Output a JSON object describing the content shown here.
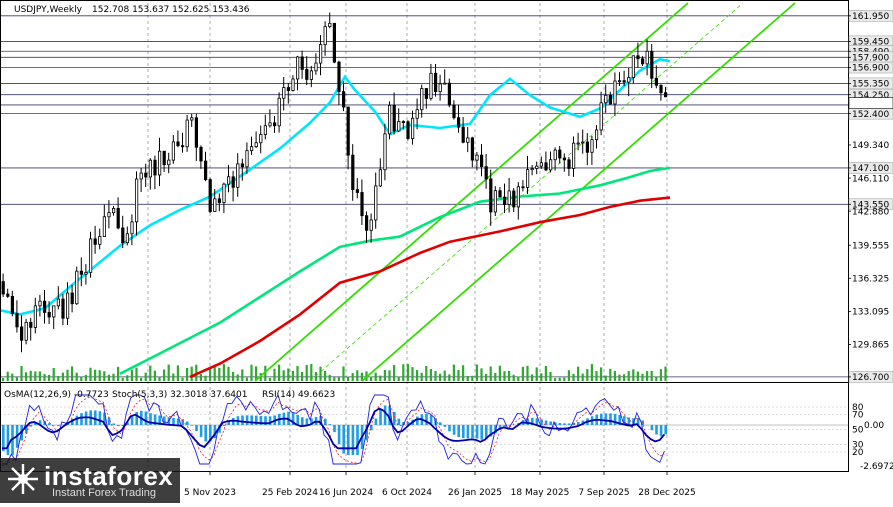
{
  "header": {
    "symbol": "USDJPY,Weekly",
    "ohlc": "152.708 153.637 152.625 153.436"
  },
  "indicator_header": {
    "osma": "OsMA(12,26,9) -0.7723",
    "stoch": "Stoch(5,3,3) 32.3018 37.6401",
    "rsi": "RSI(14) 49.6623"
  },
  "watermark": {
    "brand": "instaforex",
    "tagline": "Instant Forex Trading"
  },
  "colors": {
    "candle": "#000000",
    "ema_short": "#00e5ff",
    "ema_mid": "#00e67a",
    "ema_long": "#e00000",
    "channel": "#33dd00",
    "hline": "#3a3a6a",
    "osma_hist": "#1e9de6",
    "stoch_main": "#2222dd",
    "stoch_signal": "#ee2222",
    "rsi": "#0000aa"
  },
  "chart_data": [
    {
      "type": "candlestick",
      "title": "USDJPY,Weekly",
      "price_labels": [
        "161.950",
        "159.450",
        "158.490",
        "157.900",
        "156.900",
        "155.350",
        "154.250",
        "153.250",
        "152.400",
        "149.340",
        "147.100",
        "146.110",
        "143.550",
        "142.880",
        "139.555",
        "136.325",
        "133.095",
        "129.865",
        "126.700"
      ],
      "highlighted_levels": [
        "161.950",
        "159.450",
        "158.490",
        "157.900",
        "156.900",
        "155.350",
        "154.250",
        "153.250",
        "152.400",
        "147.100",
        "143.550",
        "126.700"
      ],
      "date_labels": [
        "5 Nov 2023",
        "25 Feb 2024",
        "16 Jun 2024",
        "6 Oct 2024",
        "26 Jan 2025",
        "18 May 2025",
        "7 Sep 2025",
        "28 Dec 2025"
      ],
      "ylim": [
        126.3,
        163.2
      ],
      "moving_averages": [
        {
          "color_key": "ema_short",
          "points": [
            [
              0,
              133.2
            ],
            [
              20,
              132.8
            ],
            [
              45,
              133.4
            ],
            [
              70,
              135.5
            ],
            [
              95,
              137.5
            ],
            [
              120,
              139.5
            ],
            [
              150,
              141.5
            ],
            [
              180,
              143.0
            ],
            [
              210,
              144.3
            ],
            [
              245,
              146.6
            ],
            [
              280,
              149.0
            ],
            [
              310,
              151.5
            ],
            [
              330,
              153.5
            ],
            [
              345,
              156.0
            ],
            [
              355,
              154.7
            ],
            [
              375,
              152.6
            ],
            [
              390,
              150.4
            ],
            [
              410,
              151.3
            ],
            [
              440,
              151.0
            ],
            [
              470,
              151.4
            ],
            [
              490,
              154.2
            ],
            [
              510,
              155.8
            ],
            [
              530,
              154.2
            ],
            [
              550,
              153.0
            ],
            [
              580,
              152.1
            ],
            [
              600,
              152.9
            ],
            [
              620,
              154.7
            ],
            [
              640,
              156.6
            ],
            [
              660,
              157.7
            ],
            [
              670,
              157.5
            ]
          ]
        },
        {
          "color_key": "ema_mid",
          "points": [
            [
              120,
              127.0
            ],
            [
              150,
              128.5
            ],
            [
              180,
              130.0
            ],
            [
              220,
              132.0
            ],
            [
              260,
              134.5
            ],
            [
              300,
              137.0
            ],
            [
              340,
              139.4
            ],
            [
              370,
              140.0
            ],
            [
              400,
              140.4
            ],
            [
              440,
              142.3
            ],
            [
              480,
              143.8
            ],
            [
              520,
              144.3
            ],
            [
              560,
              144.6
            ],
            [
              600,
              145.4
            ],
            [
              630,
              146.2
            ],
            [
              650,
              146.8
            ],
            [
              670,
              147.1
            ]
          ]
        },
        {
          "color_key": "ema_long",
          "points": [
            [
              190,
              126.7
            ],
            [
              220,
              128.0
            ],
            [
              260,
              130.2
            ],
            [
              300,
              132.8
            ],
            [
              340,
              135.9
            ],
            [
              380,
              137.0
            ],
            [
              420,
              138.8
            ],
            [
              450,
              139.9
            ],
            [
              500,
              140.9
            ],
            [
              540,
              141.8
            ],
            [
              580,
              142.5
            ],
            [
              610,
              143.3
            ],
            [
              640,
              143.9
            ],
            [
              670,
              144.2
            ]
          ]
        }
      ]
    },
    {
      "type": "bar",
      "title": "OsMA(12,26,9)",
      "scale_labels": [
        "0.00",
        "-2.69725"
      ],
      "current_value": -0.7723
    },
    {
      "type": "line",
      "title": "Stoch(5,3,3) / RSI(14)",
      "scale_labels": [
        "80",
        "70",
        "50",
        "30",
        "20"
      ],
      "series": [
        {
          "name": "Stoch(5,3,3)",
          "value": 32.3018,
          "signal": 37.6401
        },
        {
          "name": "RSI(14)",
          "value": 49.6623
        }
      ]
    }
  ]
}
